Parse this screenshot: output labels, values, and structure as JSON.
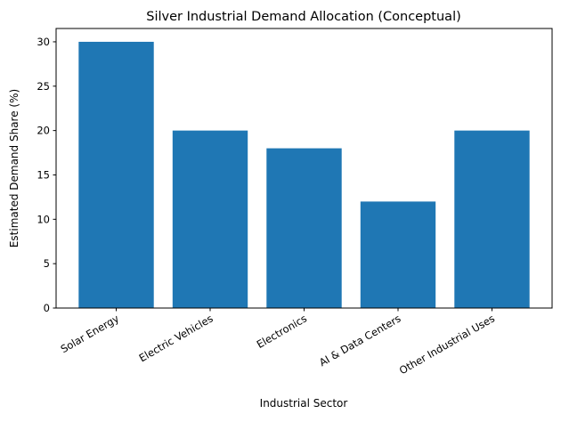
{
  "chart_data": {
    "type": "bar",
    "title": "Silver Industrial Demand Allocation (Conceptual)",
    "xlabel": "Industrial Sector",
    "ylabel": "Estimated Demand Share (%)",
    "categories": [
      "Solar Energy",
      "Electric Vehicles",
      "Electronics",
      "AI & Data Centers",
      "Other Industrial Uses"
    ],
    "values": [
      30,
      20,
      18,
      12,
      20
    ],
    "ylim": [
      0,
      31.5
    ],
    "yticks": [
      0,
      5,
      10,
      15,
      20,
      25,
      30
    ],
    "bar_color": "#1f77b4",
    "grid": false
  }
}
